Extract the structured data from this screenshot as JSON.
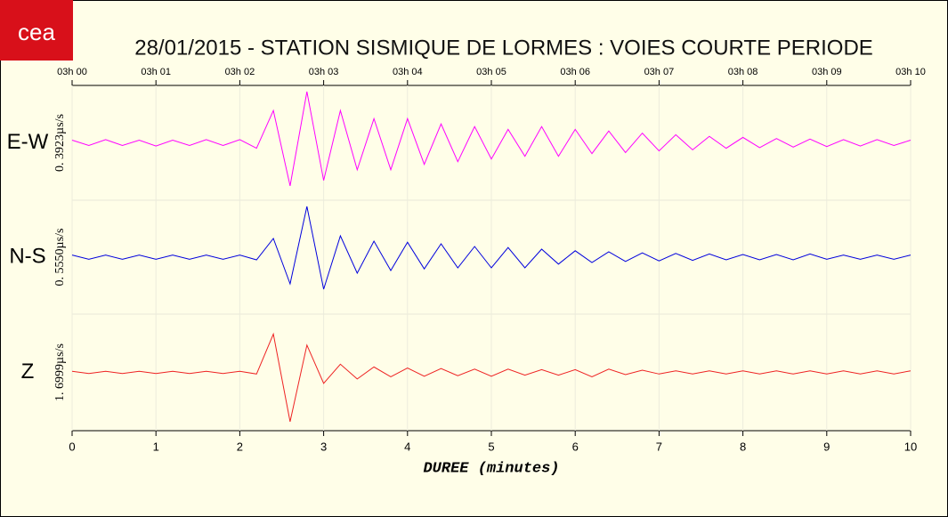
{
  "logo": "cea",
  "chart_data": {
    "type": "line",
    "title": "28/01/2015  -  STATION SISMIQUE DE LORMES : VOIES COURTE PERIODE",
    "xlabel": "DUREE (minutes)",
    "xlim": [
      0,
      10
    ],
    "xticks": [
      0,
      1,
      2,
      3,
      4,
      5,
      6,
      7,
      8,
      9,
      10
    ],
    "x2ticks": [
      {
        "value": 0,
        "label": "03h 00"
      },
      {
        "value": 1,
        "label": "03h 01"
      },
      {
        "value": 2,
        "label": "03h 02"
      },
      {
        "value": 3,
        "label": "03h 03"
      },
      {
        "value": 4,
        "label": "03h 04"
      },
      {
        "value": 5,
        "label": "03h 05"
      },
      {
        "value": 6,
        "label": "03h 06"
      },
      {
        "value": 7,
        "label": "03h 07"
      },
      {
        "value": 8,
        "label": "03h 08"
      },
      {
        "value": 9,
        "label": "03h 09"
      },
      {
        "value": 10,
        "label": "03h 10"
      }
    ],
    "grid": true,
    "ylim": [
      -1,
      1
    ],
    "x": [
      0,
      0.2,
      0.4,
      0.6,
      0.8,
      1,
      1.2,
      1.4,
      1.6,
      1.8,
      2,
      2.2,
      2.4,
      2.6,
      2.8,
      3,
      3.2,
      3.4,
      3.6,
      3.8,
      4,
      4.2,
      4.4,
      4.6,
      4.8,
      5,
      5.2,
      5.4,
      5.6,
      5.8,
      6,
      6.2,
      6.4,
      6.6,
      6.8,
      7,
      7.2,
      7.4,
      7.6,
      7.8,
      8,
      8.2,
      8.4,
      8.6,
      8.8,
      9,
      9.2,
      9.4,
      9.6,
      9.8,
      10
    ],
    "series": [
      {
        "name": "E-W",
        "scale_label": "0. 3923µs/s",
        "color": "#ff00ff",
        "values": [
          0.05,
          -0.05,
          0.06,
          -0.05,
          0.05,
          -0.06,
          0.05,
          -0.05,
          0.06,
          -0.05,
          0.06,
          -0.1,
          0.6,
          -0.8,
          0.95,
          -0.7,
          0.6,
          -0.5,
          0.45,
          -0.5,
          0.45,
          -0.4,
          0.35,
          -0.35,
          0.3,
          -0.3,
          0.25,
          -0.25,
          0.3,
          -0.25,
          0.25,
          -0.2,
          0.22,
          -0.18,
          0.18,
          -0.15,
          0.15,
          -0.13,
          0.12,
          -0.1,
          0.1,
          -0.09,
          0.08,
          -0.08,
          0.07,
          -0.07,
          0.06,
          -0.06,
          0.06,
          -0.05,
          0.05
        ]
      },
      {
        "name": "N-S",
        "scale_label": "0. 5550µs/s",
        "color": "#0000dd",
        "values": [
          0.04,
          -0.04,
          0.04,
          -0.04,
          0.04,
          -0.04,
          0.04,
          -0.04,
          0.04,
          -0.04,
          0.04,
          -0.05,
          0.35,
          -0.5,
          0.95,
          -0.6,
          0.4,
          -0.3,
          0.3,
          -0.25,
          0.28,
          -0.22,
          0.25,
          -0.2,
          0.2,
          -0.2,
          0.18,
          -0.2,
          0.15,
          -0.13,
          0.12,
          -0.1,
          0.1,
          -0.08,
          0.08,
          -0.07,
          0.07,
          -0.06,
          0.06,
          -0.05,
          0.05,
          -0.05,
          0.05,
          -0.05,
          0.06,
          -0.04,
          0.04,
          -0.04,
          0.04,
          -0.04,
          0.04
        ]
      },
      {
        "name": "Z",
        "scale_label": "1. 6999µs/s",
        "color": "#ee2222",
        "values": [
          0.02,
          -0.02,
          0.02,
          -0.02,
          0.02,
          -0.02,
          0.02,
          -0.02,
          0.02,
          -0.02,
          0.02,
          -0.03,
          0.7,
          -0.9,
          0.5,
          -0.2,
          0.15,
          -0.12,
          0.1,
          -0.08,
          0.08,
          -0.07,
          0.07,
          -0.06,
          0.06,
          -0.07,
          0.06,
          -0.05,
          0.05,
          -0.05,
          0.05,
          -0.08,
          0.06,
          -0.04,
          0.04,
          -0.03,
          0.03,
          -0.03,
          0.03,
          -0.03,
          0.03,
          -0.03,
          0.03,
          -0.03,
          0.03,
          -0.03,
          0.03,
          -0.03,
          0.03,
          -0.03,
          0.03
        ]
      }
    ]
  }
}
